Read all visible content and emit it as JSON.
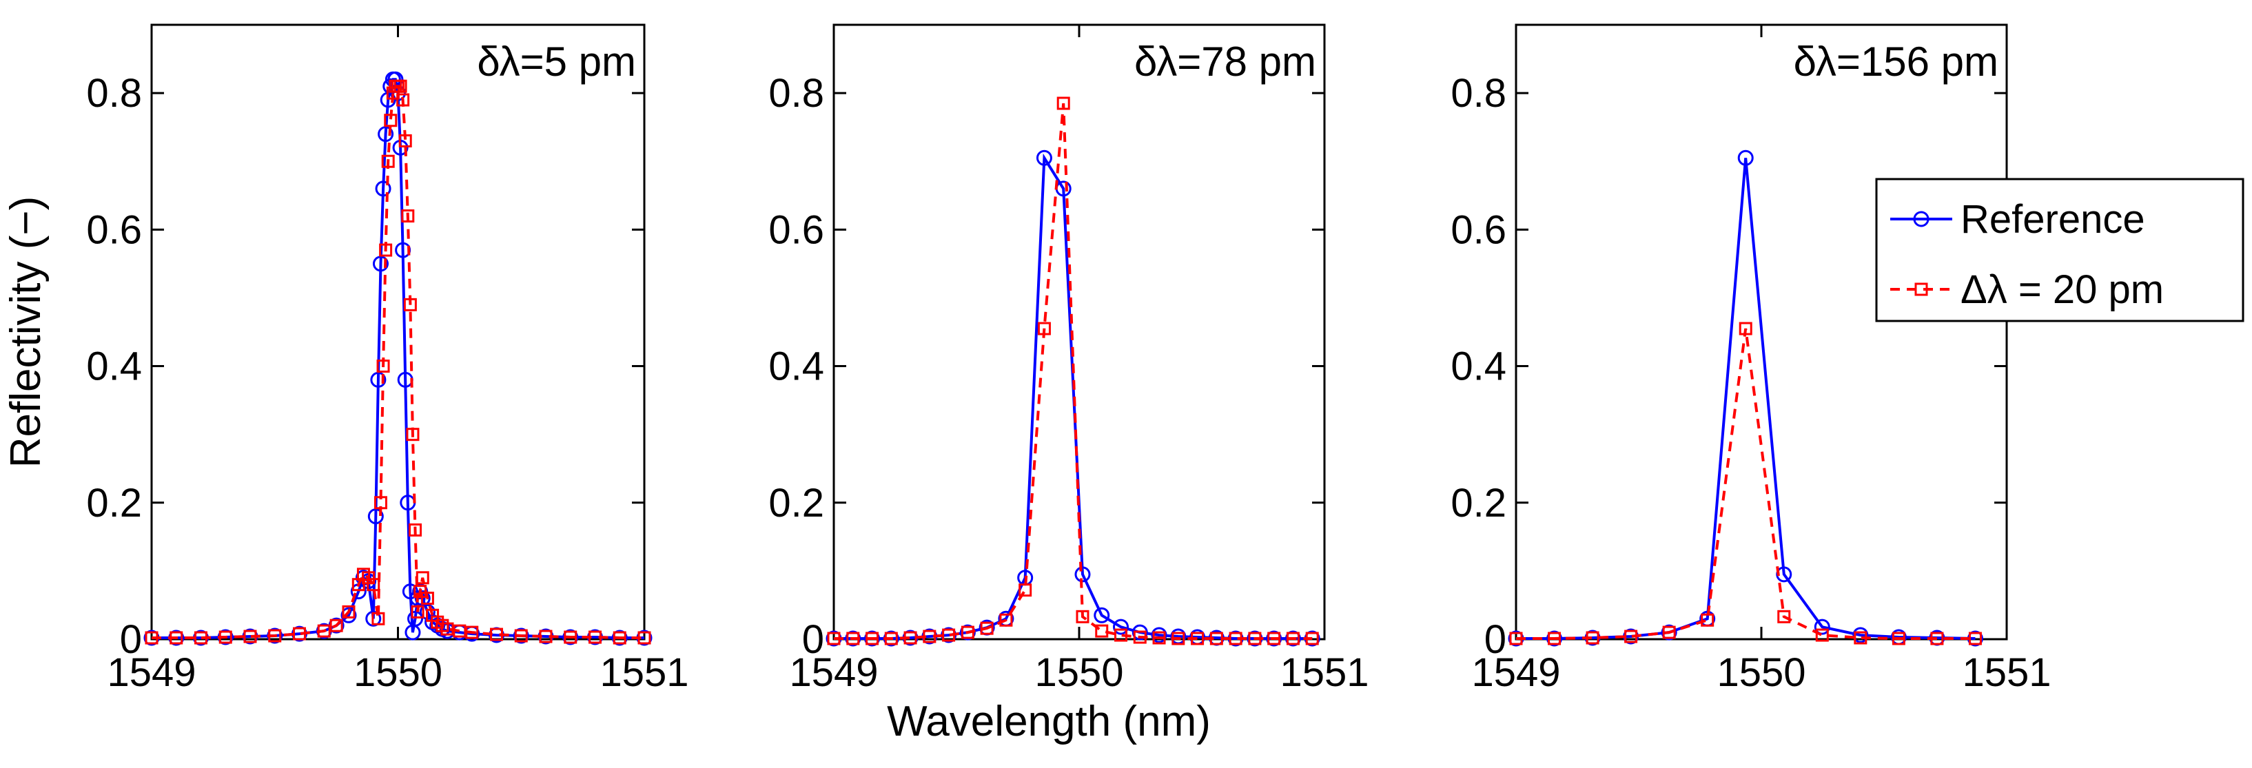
{
  "figure": {
    "ylabel": "Reflectivity (−)",
    "xlabel": "Wavelength (nm)"
  },
  "legend": {
    "position": "right",
    "entries": [
      {
        "label": "Reference",
        "color": "#0000ff",
        "line": "solid",
        "marker": "circle"
      },
      {
        "label": "Δλ = 20 pm",
        "color": "#ff0000",
        "line": "dashed",
        "marker": "square"
      }
    ]
  },
  "chart_data": [
    {
      "type": "line",
      "annotation": "δλ=5 pm",
      "xlim": [
        1549,
        1551
      ],
      "ylim": [
        0,
        0.9
      ],
      "xticks": [
        "1549",
        "1550",
        "1551"
      ],
      "yticks": [
        "0",
        "0.2",
        "0.4",
        "0.6",
        "0.8"
      ],
      "series": [
        {
          "name": "Reference",
          "x": [
            1549.0,
            1549.1,
            1549.2,
            1549.3,
            1549.4,
            1549.5,
            1549.6,
            1549.7,
            1549.75,
            1549.8,
            1549.84,
            1549.86,
            1549.88,
            1549.9,
            1549.91,
            1549.92,
            1549.93,
            1549.94,
            1549.95,
            1549.96,
            1549.97,
            1549.98,
            1549.99,
            1550.0,
            1550.01,
            1550.02,
            1550.03,
            1550.04,
            1550.05,
            1550.06,
            1550.07,
            1550.08,
            1550.09,
            1550.1,
            1550.12,
            1550.14,
            1550.16,
            1550.18,
            1550.2,
            1550.25,
            1550.3,
            1550.4,
            1550.5,
            1550.6,
            1550.7,
            1550.8,
            1550.9,
            1551.0
          ],
          "y": [
            0.002,
            0.002,
            0.002,
            0.003,
            0.004,
            0.005,
            0.008,
            0.012,
            0.02,
            0.035,
            0.07,
            0.09,
            0.085,
            0.03,
            0.18,
            0.38,
            0.55,
            0.66,
            0.74,
            0.79,
            0.81,
            0.82,
            0.82,
            0.8,
            0.72,
            0.57,
            0.38,
            0.2,
            0.07,
            0.01,
            0.03,
            0.06,
            0.07,
            0.06,
            0.04,
            0.025,
            0.02,
            0.015,
            0.012,
            0.01,
            0.008,
            0.006,
            0.005,
            0.004,
            0.003,
            0.003,
            0.002,
            0.002
          ]
        },
        {
          "name": "Δλ = 20 pm",
          "x": [
            1549.0,
            1549.1,
            1549.2,
            1549.3,
            1549.4,
            1549.5,
            1549.6,
            1549.7,
            1549.75,
            1549.8,
            1549.84,
            1549.86,
            1549.88,
            1549.9,
            1549.92,
            1549.93,
            1549.94,
            1549.95,
            1549.96,
            1549.97,
            1549.98,
            1549.99,
            1550.0,
            1550.01,
            1550.02,
            1550.03,
            1550.04,
            1550.05,
            1550.06,
            1550.07,
            1550.08,
            1550.09,
            1550.1,
            1550.12,
            1550.14,
            1550.16,
            1550.18,
            1550.2,
            1550.25,
            1550.3,
            1550.4,
            1550.5,
            1550.6,
            1550.7,
            1550.8,
            1550.9,
            1551.0
          ],
          "y": [
            0.002,
            0.002,
            0.002,
            0.003,
            0.004,
            0.005,
            0.008,
            0.012,
            0.02,
            0.04,
            0.08,
            0.095,
            0.09,
            0.08,
            0.03,
            0.2,
            0.4,
            0.57,
            0.7,
            0.76,
            0.8,
            0.81,
            0.81,
            0.81,
            0.79,
            0.73,
            0.62,
            0.49,
            0.3,
            0.16,
            0.04,
            0.07,
            0.09,
            0.06,
            0.035,
            0.025,
            0.02,
            0.015,
            0.012,
            0.01,
            0.007,
            0.005,
            0.004,
            0.003,
            0.003,
            0.002,
            0.002
          ]
        }
      ]
    },
    {
      "type": "line",
      "annotation": "δλ=78 pm",
      "xlim": [
        1549,
        1551
      ],
      "ylim": [
        0,
        0.9
      ],
      "xticks": [
        "1549",
        "1550",
        "1551"
      ],
      "yticks": [
        "0",
        "0.2",
        "0.4",
        "0.6",
        "0.8"
      ],
      "series": [
        {
          "name": "Reference",
          "x": [
            1549.0,
            1549.078,
            1549.156,
            1549.234,
            1549.312,
            1549.39,
            1549.468,
            1549.546,
            1549.624,
            1549.702,
            1549.78,
            1549.858,
            1549.936,
            1550.014,
            1550.092,
            1550.17,
            1550.248,
            1550.326,
            1550.404,
            1550.482,
            1550.56,
            1550.638,
            1550.716,
            1550.794,
            1550.872,
            1550.95
          ],
          "y": [
            0.001,
            0.001,
            0.001,
            0.001,
            0.002,
            0.004,
            0.006,
            0.01,
            0.017,
            0.03,
            0.09,
            0.705,
            0.66,
            0.095,
            0.035,
            0.018,
            0.01,
            0.006,
            0.004,
            0.003,
            0.002,
            0.001,
            0.001,
            0.001,
            0.001,
            0.001
          ]
        },
        {
          "name": "Δλ = 20 pm",
          "x": [
            1549.0,
            1549.078,
            1549.156,
            1549.234,
            1549.312,
            1549.39,
            1549.468,
            1549.546,
            1549.624,
            1549.702,
            1549.78,
            1549.858,
            1549.936,
            1550.014,
            1550.092,
            1550.17,
            1550.248,
            1550.326,
            1550.404,
            1550.482,
            1550.56,
            1550.638,
            1550.716,
            1550.794,
            1550.872,
            1550.95
          ],
          "y": [
            0.001,
            0.001,
            0.001,
            0.001,
            0.002,
            0.004,
            0.006,
            0.01,
            0.016,
            0.028,
            0.072,
            0.455,
            0.785,
            0.033,
            0.012,
            0.006,
            0.003,
            0.002,
            0.001,
            0.001,
            0.001,
            0.001,
            0.001,
            0.001,
            0.001,
            0.001
          ]
        }
      ]
    },
    {
      "type": "line",
      "annotation": "δλ=156 pm",
      "xlim": [
        1549,
        1551
      ],
      "ylim": [
        0,
        0.9
      ],
      "xticks": [
        "1549",
        "1550",
        "1551"
      ],
      "yticks": [
        "0",
        "0.2",
        "0.4",
        "0.6",
        "0.8"
      ],
      "series": [
        {
          "name": "Reference",
          "x": [
            1549.0,
            1549.156,
            1549.312,
            1549.468,
            1549.624,
            1549.78,
            1549.936,
            1550.092,
            1550.248,
            1550.404,
            1550.56,
            1550.716,
            1550.872
          ],
          "y": [
            0.001,
            0.001,
            0.002,
            0.004,
            0.01,
            0.03,
            0.705,
            0.095,
            0.018,
            0.006,
            0.003,
            0.002,
            0.001
          ]
        },
        {
          "name": "Δλ = 20 pm",
          "x": [
            1549.0,
            1549.156,
            1549.312,
            1549.468,
            1549.624,
            1549.78,
            1549.936,
            1550.092,
            1550.248,
            1550.404,
            1550.56,
            1550.716,
            1550.872
          ],
          "y": [
            0.001,
            0.001,
            0.002,
            0.004,
            0.01,
            0.028,
            0.455,
            0.033,
            0.006,
            0.002,
            0.001,
            0.001,
            0.001
          ]
        }
      ]
    }
  ]
}
